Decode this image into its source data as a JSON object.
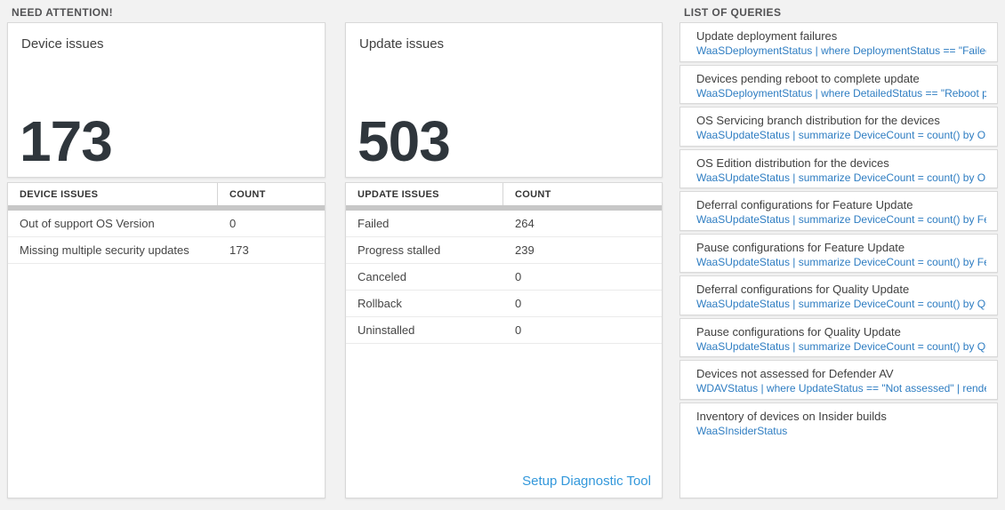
{
  "colors": {
    "page_background": "#f2f2f2",
    "card_border": "#d9d9d9",
    "query_blue": "#2e7dc2",
    "link_blue": "#3398db",
    "big_number_color": "#2f363c"
  },
  "need_attention": {
    "section_title": "NEED ATTENTION!",
    "device_card": {
      "title": "Device issues",
      "big_number": "173",
      "table": {
        "col1_header": "DEVICE ISSUES",
        "col2_header": "COUNT",
        "rows": [
          {
            "label": "Out of support OS Version",
            "count": "0"
          },
          {
            "label": "Missing multiple security updates",
            "count": "173"
          }
        ]
      }
    },
    "update_card": {
      "title": "Update issues",
      "big_number": "503",
      "table": {
        "col1_header": "UPDATE ISSUES",
        "col2_header": "COUNT",
        "rows": [
          {
            "label": "Failed",
            "count": "264"
          },
          {
            "label": "Progress stalled",
            "count": "239"
          },
          {
            "label": "Canceled",
            "count": "0"
          },
          {
            "label": "Rollback",
            "count": "0"
          },
          {
            "label": "Uninstalled",
            "count": "0"
          }
        ]
      },
      "setup_link_label": "Setup Diagnostic Tool"
    }
  },
  "queries": {
    "section_title": "LIST OF QUERIES",
    "items": [
      {
        "title": "Update deployment failures",
        "query": "WaaSDeploymentStatus | where DeploymentStatus == \"Failed\" |..."
      },
      {
        "title": "Devices pending reboot to complete update",
        "query": "WaaSDeploymentStatus | where DetailedStatus == \"Reboot pend..."
      },
      {
        "title": "OS Servicing branch distribution for the devices",
        "query": "WaaSUpdateStatus | summarize DeviceCount = count() by OSSer..."
      },
      {
        "title": "OS Edition distribution for the devices",
        "query": "WaaSUpdateStatus | summarize DeviceCount = count() by OSEdit..."
      },
      {
        "title": "Deferral configurations for Feature Update",
        "query": "WaaSUpdateStatus | summarize DeviceCount = count() by Featur..."
      },
      {
        "title": "Pause configurations for Feature Update",
        "query": "WaaSUpdateStatus | summarize DeviceCount = count() by Featur..."
      },
      {
        "title": "Deferral configurations for Quality Update",
        "query": "WaaSUpdateStatus | summarize DeviceCount = count() by Qualit..."
      },
      {
        "title": "Pause configurations for Quality Update",
        "query": "WaaSUpdateStatus | summarize DeviceCount = count() by Qualit..."
      },
      {
        "title": "Devices not assessed for Defender AV",
        "query": "WDAVStatus | where UpdateStatus == \"Not assessed\" | render ta..."
      },
      {
        "title": "Inventory of devices on Insider builds",
        "query": "WaaSInsiderStatus"
      }
    ]
  }
}
